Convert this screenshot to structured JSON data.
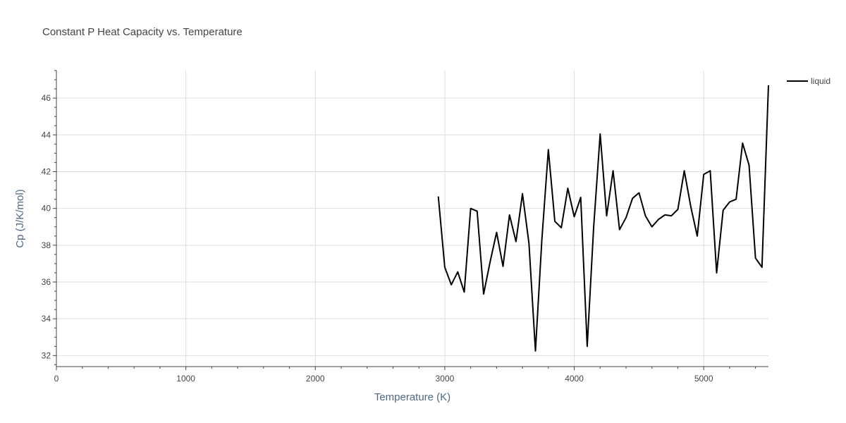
{
  "chart_data": {
    "type": "line",
    "title": "Constant P Heat Capacity vs. Temperature",
    "xlabel": "Temperature (K)",
    "ylabel": "Cp (J/K/mol)",
    "xlim": [
      0,
      5500
    ],
    "ylim": [
      31.4,
      47.5
    ],
    "x_ticks": [
      0,
      1000,
      2000,
      3000,
      4000,
      5000
    ],
    "y_ticks": [
      32,
      34,
      36,
      38,
      40,
      42,
      44,
      46
    ],
    "grid": true,
    "legend_position": "top-right",
    "series": [
      {
        "name": "liquid",
        "color": "#000000",
        "x": [
          2950,
          3000,
          3050,
          3100,
          3150,
          3200,
          3250,
          3300,
          3350,
          3400,
          3450,
          3500,
          3550,
          3600,
          3650,
          3700,
          3750,
          3800,
          3850,
          3900,
          3950,
          4000,
          4050,
          4100,
          4150,
          4200,
          4250,
          4300,
          4350,
          4400,
          4450,
          4500,
          4550,
          4600,
          4650,
          4700,
          4750,
          4800,
          4850,
          4900,
          4950,
          5000,
          5050,
          5100,
          5150,
          5200,
          5250,
          5300,
          5350,
          5400,
          5450,
          5500
        ],
        "y": [
          40.65,
          36.8,
          35.85,
          36.55,
          35.45,
          40.0,
          39.85,
          35.35,
          37.1,
          38.7,
          36.85,
          39.65,
          38.2,
          40.8,
          38.1,
          32.25,
          38.3,
          43.2,
          39.3,
          38.95,
          41.1,
          39.55,
          40.6,
          32.5,
          39.0,
          44.05,
          39.6,
          42.05,
          38.85,
          39.5,
          40.55,
          40.85,
          39.6,
          39.0,
          39.4,
          39.65,
          39.6,
          39.95,
          42.05,
          40.1,
          38.5,
          41.85,
          42.05,
          36.5,
          39.9,
          40.35,
          40.5,
          43.55,
          42.35,
          37.3,
          36.8,
          46.7
        ]
      }
    ]
  }
}
